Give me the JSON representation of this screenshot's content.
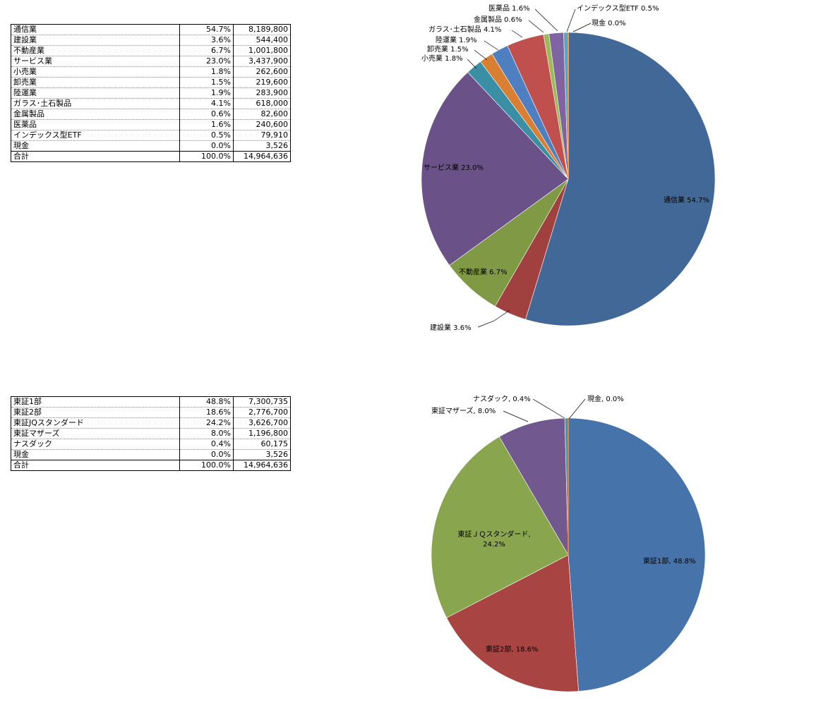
{
  "table1": {
    "rows": [
      {
        "name": "通信業",
        "pct": "54.7%",
        "amount": "8,189,800"
      },
      {
        "name": "建設業",
        "pct": "3.6%",
        "amount": "544,400"
      },
      {
        "name": "不動産業",
        "pct": "6.7%",
        "amount": "1,001,800"
      },
      {
        "name": "サービス業",
        "pct": "23.0%",
        "amount": "3,437,900"
      },
      {
        "name": "小売業",
        "pct": "1.8%",
        "amount": "262,600"
      },
      {
        "name": "卸売業",
        "pct": "1.5%",
        "amount": "219,600"
      },
      {
        "name": "陸運業",
        "pct": "1.9%",
        "amount": "283,900"
      },
      {
        "name": "ガラス･土石製品",
        "pct": "4.1%",
        "amount": "618,000"
      },
      {
        "name": "金属製品",
        "pct": "0.6%",
        "amount": "82,600"
      },
      {
        "name": "医薬品",
        "pct": "1.6%",
        "amount": "240,600"
      },
      {
        "name": "インデックス型ETF",
        "pct": "0.5%",
        "amount": "79,910"
      },
      {
        "name": "現金",
        "pct": "0.0%",
        "amount": "3,526"
      }
    ],
    "total": {
      "name": "合計",
      "pct": "100.0%",
      "amount": "14,964,636"
    }
  },
  "table2": {
    "rows": [
      {
        "name": "東証1部",
        "pct": "48.8%",
        "amount": "7,300,735"
      },
      {
        "name": "東証2部",
        "pct": "18.6%",
        "amount": "2,776,700"
      },
      {
        "name": "東証JQスタンダード",
        "pct": "24.2%",
        "amount": "3,626,700"
      },
      {
        "name": "東証マザーズ",
        "pct": "8.0%",
        "amount": "1,196,800"
      },
      {
        "name": "ナスダック",
        "pct": "0.4%",
        "amount": "60,175"
      },
      {
        "name": "現金",
        "pct": "0.0%",
        "amount": "3,526"
      }
    ],
    "total": {
      "name": "合計",
      "pct": "100.0%",
      "amount": "14,964,636"
    }
  },
  "chart_data": [
    {
      "type": "pie",
      "start_angle": "12 o'clock",
      "direction": "clockwise",
      "slices": [
        {
          "label": "通信業 54.7%",
          "value": 54.7,
          "color": "#416897"
        },
        {
          "label": "建設業 3.6%",
          "value": 3.6,
          "color": "#a0413f"
        },
        {
          "label": "不動産業 6.7%",
          "value": 6.7,
          "color": "#7f9945"
        },
        {
          "label": "サービス業 23.0%",
          "value": 23.0,
          "color": "#6a5288"
        },
        {
          "label": "小売業 1.8%",
          "value": 1.8,
          "color": "#3a8fa5"
        },
        {
          "label": "卸売業 1.5%",
          "value": 1.5,
          "color": "#d97f33"
        },
        {
          "label": "陸運業 1.9%",
          "value": 1.9,
          "color": "#4e7fc1"
        },
        {
          "label": "ガラス･土石製品 4.1%",
          "value": 4.1,
          "color": "#c0504d"
        },
        {
          "label": "金属製品 0.6%",
          "value": 0.6,
          "color": "#9bbb59"
        },
        {
          "label": "医薬品 1.6%",
          "value": 1.6,
          "color": "#8064a2"
        },
        {
          "label": "インデックス型ETF 0.5%",
          "value": 0.5,
          "color": "#4bacc6"
        },
        {
          "label": "現金 0.0%",
          "value": 0.0,
          "color": "#f79646"
        }
      ]
    },
    {
      "type": "pie",
      "start_angle": "12 o'clock",
      "direction": "clockwise",
      "slices": [
        {
          "label": "東証1部, 48.8%",
          "value": 48.8,
          "color": "#4673aa"
        },
        {
          "label": "東証2部, 18.6%",
          "value": 18.6,
          "color": "#a84543"
        },
        {
          "label": "東証ＪＱスタンダード, 24.2%",
          "value": 24.2,
          "color": "#89a54e"
        },
        {
          "label": "東証マザーズ, 8.0%",
          "value": 8.0,
          "color": "#71588f"
        },
        {
          "label": "ナスダック, 0.4%",
          "value": 0.4,
          "color": "#4198af"
        },
        {
          "label": "現金, 0.0%",
          "value": 0.0,
          "color": "#db843d"
        }
      ]
    }
  ]
}
